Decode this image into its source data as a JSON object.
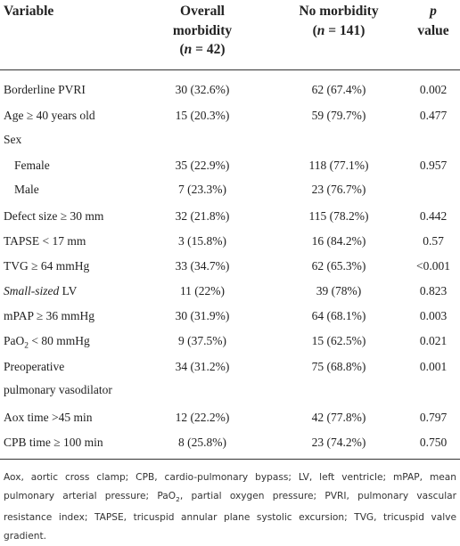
{
  "header": {
    "variable": "Variable",
    "overall": "Overall",
    "overall_2": "morbidity",
    "overall_n": [
      "(",
      "n",
      " = 42)"
    ],
    "none": "No morbidity",
    "none_n": [
      "(",
      "n",
      " = 141)"
    ],
    "p": "p",
    "p_2": "value"
  },
  "rows": [
    {
      "label": "Borderline PVRI",
      "overall": "30 (32.6%)",
      "none": "62 (67.4%)",
      "p": "0.002"
    },
    {
      "label": "Age ≥ 40 years old",
      "overall": "15 (20.3%)",
      "none": "59 (79.7%)",
      "p": "0.477"
    },
    {
      "label": "Sex"
    },
    {
      "label": "Female",
      "indent": true,
      "overall": "35 (22.9%)",
      "none": "118 (77.1%)",
      "p": "0.957"
    },
    {
      "label": "Male",
      "indent": true,
      "overall": "7 (23.3%)",
      "none": "23 (76.7%)"
    },
    {
      "label": "Defect size ≥ 30 mm",
      "overall": "32 (21.8%)",
      "none": "115 (78.2%)",
      "p": "0.442"
    },
    {
      "label": "TAPSE < 17 mm",
      "overall": "3 (15.8%)",
      "none": "16 (84.2%)",
      "p": "0.57"
    },
    {
      "label": "TVG ≥ 64 mmHg",
      "overall": "33 (34.7%)",
      "none": "62 (65.3%)",
      "p": "<0.001"
    },
    {
      "label": [
        {
          "text": "Small-sized",
          "style": "italic"
        },
        {
          "text": " LV"
        }
      ],
      "overall": "11 (22%)",
      "none": "39 (78%)",
      "p": "0.823"
    },
    {
      "label": "mPAP ≥ 36 mmHg",
      "overall": "30 (31.9%)",
      "none": "64 (68.1%)",
      "p": "0.003"
    },
    {
      "label": [
        {
          "text": "PaO"
        },
        {
          "text": "2",
          "style": "sub"
        },
        {
          "text": " < 80 mmHg"
        }
      ],
      "overall": "9 (37.5%)",
      "none": "15 (62.5%)",
      "p": "0.021"
    },
    {
      "label": [
        {
          "text": "Preoperative"
        },
        {
          "text": "pulmonary vasodilator",
          "style": "newline"
        }
      ],
      "overall": "34 (31.2%)",
      "none": "75 (68.8%)",
      "p": "0.001"
    },
    {
      "label": "Aox time >45 min",
      "overall": "12 (22.2%)",
      "none": "42 (77.8%)",
      "p": "0.797"
    },
    {
      "label": "CPB time ≥ 100 min",
      "overall": "8 (25.8%)",
      "none": "23 (74.2%)",
      "p": "0.750"
    }
  ],
  "footnote": [
    {
      "text": "Aox, aortic cross clamp; CPB, cardio-pulmonary bypass; LV, left ventricle; mPAP, mean pulmonary arterial pressure; PaO"
    },
    {
      "text": "2",
      "style": "sub"
    },
    {
      "text": ", partial oxygen pressure; PVRI, pulmonary vascular resistance index; TAPSE, tricuspid annular plane systolic excursion; TVG, tricuspid valve gradient."
    }
  ]
}
